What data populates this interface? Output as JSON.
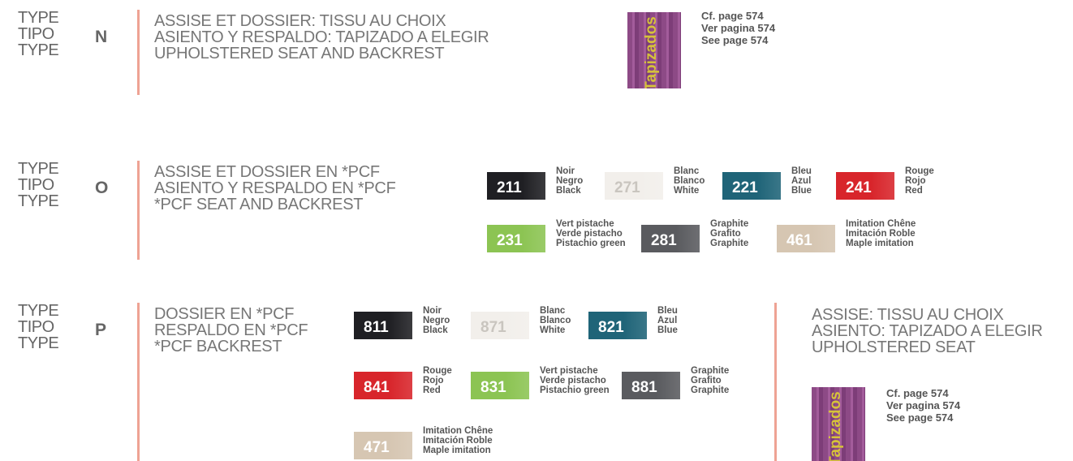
{
  "sections": [
    {
      "type_labels": [
        "TYPE",
        "TIPO",
        "TYPE"
      ],
      "letter": "N",
      "description": [
        "ASSISE ET DOSSIER: TISSU AU CHOIX",
        "ASIENTO Y RESPALDO: TAPIZADO A ELEGIR",
        "UPHOLSTERED SEAT AND BACKREST"
      ],
      "reference": {
        "image_text": "Tapizados",
        "lines": [
          "Cf. page 574",
          "Ver pagina 574",
          "See page 574"
        ]
      }
    },
    {
      "type_labels": [
        "TYPE",
        "TIPO",
        "TYPE"
      ],
      "letter": "O",
      "description": [
        "ASSISE ET DOSSIER EN *PCF",
        "ASIENTO Y RESPALDO EN *PCF",
        "*PCF SEAT AND BACKREST"
      ],
      "swatches": [
        {
          "code": "211",
          "names": [
            "Noir",
            "Negro",
            "Black"
          ],
          "color": "#1f1f23"
        },
        {
          "code": "271",
          "names": [
            "Blanc",
            "Blanco",
            "White"
          ],
          "color": "#f2efeb"
        },
        {
          "code": "221",
          "names": [
            "Bleu",
            "Azul",
            "Blue"
          ],
          "color": "#1f6478"
        },
        {
          "code": "241",
          "names": [
            "Rouge",
            "Rojo",
            "Red"
          ],
          "color": "#d8252b"
        },
        {
          "code": "231",
          "names": [
            "Vert pistache",
            "Verde pistacho",
            "Pistachio green"
          ],
          "color": "#8cc453"
        },
        {
          "code": "281",
          "names": [
            "Graphite",
            "Grafito",
            "Graphite"
          ],
          "color": "#5a5b5f"
        },
        {
          "code": "461",
          "names": [
            "Imitation Chêne",
            "Imitación Roble",
            "Maple imitation"
          ],
          "color": "#d6c6b2"
        }
      ]
    },
    {
      "type_labels": [
        "TYPE",
        "TIPO",
        "TYPE"
      ],
      "letter": "P",
      "description": [
        "DOSSIER EN *PCF",
        "RESPALDO EN *PCF",
        "*PCF BACKREST"
      ],
      "swatches": [
        {
          "code": "811",
          "names": [
            "Noir",
            "Negro",
            "Black"
          ],
          "color": "#1f1f23"
        },
        {
          "code": "871",
          "names": [
            "Blanc",
            "Blanco",
            "White"
          ],
          "color": "#f2efeb"
        },
        {
          "code": "821",
          "names": [
            "Bleu",
            "Azul",
            "Blue"
          ],
          "color": "#1f6478"
        },
        {
          "code": "841",
          "names": [
            "Rouge",
            "Rojo",
            "Red"
          ],
          "color": "#d8252b"
        },
        {
          "code": "831",
          "names": [
            "Vert pistache",
            "Verde pistacho",
            "Pistachio green"
          ],
          "color": "#8cc453"
        },
        {
          "code": "881",
          "names": [
            "Graphite",
            "Grafito",
            "Graphite"
          ],
          "color": "#5a5b5f"
        },
        {
          "code": "471",
          "names": [
            "Imitation Chêne",
            "Imitación Roble",
            "Maple imitation"
          ],
          "color": "#d6c6b2"
        }
      ],
      "seat": {
        "description": [
          "ASSISE: TISSU AU CHOIX",
          "ASIENTO: TAPIZADO A ELEGIR",
          "UPHOLSTERED SEAT"
        ],
        "reference": {
          "image_text": "Tapizados",
          "lines": [
            "Cf. page 574",
            "Ver pagina 574",
            "See page 574"
          ]
        }
      }
    }
  ]
}
